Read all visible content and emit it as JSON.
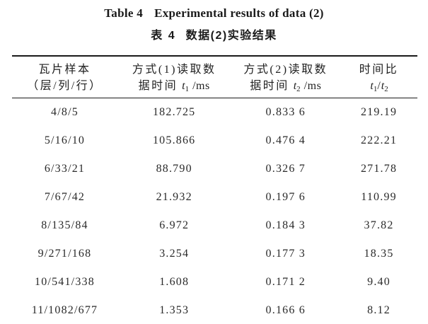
{
  "page": {
    "background": "#ffffff",
    "text_color": "#1e1e1e",
    "rule_color": "#1a1a1a"
  },
  "titles": {
    "english_label": "Table 4",
    "english_text": "Experimental results of data (2)",
    "chinese_label": "表 4",
    "chinese_text": "数据(2)实验结果"
  },
  "table": {
    "col1": {
      "line1": "瓦片样本",
      "line2": "（层/列/行）"
    },
    "col2": {
      "line1": "方式(1)读取数",
      "line2_text": "据时间",
      "var": "t",
      "sub": "1",
      "unit": "/ms"
    },
    "col3": {
      "line1": "方式(2)读取数",
      "line2_text": "据时间",
      "var": "t",
      "sub": "2",
      "unit": "/ms"
    },
    "col4": {
      "line1": "时间比",
      "var1": "t",
      "sub1": "1",
      "slash": "/",
      "var2": "t",
      "sub2": "2"
    },
    "rows": [
      {
        "sample": "4/8/5",
        "t1": "182.725",
        "t2": "0.833 6",
        "ratio": "219.19"
      },
      {
        "sample": "5/16/10",
        "t1": "105.866",
        "t2": "0.476 4",
        "ratio": "222.21"
      },
      {
        "sample": "6/33/21",
        "t1": "88.790",
        "t2": "0.326 7",
        "ratio": "271.78"
      },
      {
        "sample": "7/67/42",
        "t1": "21.932",
        "t2": "0.197 6",
        "ratio": "110.99"
      },
      {
        "sample": "8/135/84",
        "t1": "6.972",
        "t2": "0.184 3",
        "ratio": "37.82"
      },
      {
        "sample": "9/271/168",
        "t1": "3.254",
        "t2": "0.177 3",
        "ratio": "18.35"
      },
      {
        "sample": "10/541/338",
        "t1": "1.608",
        "t2": "0.171 2",
        "ratio": "9.40"
      },
      {
        "sample": "11/1082/677",
        "t1": "1.353",
        "t2": "0.166 6",
        "ratio": "8.12"
      }
    ]
  }
}
